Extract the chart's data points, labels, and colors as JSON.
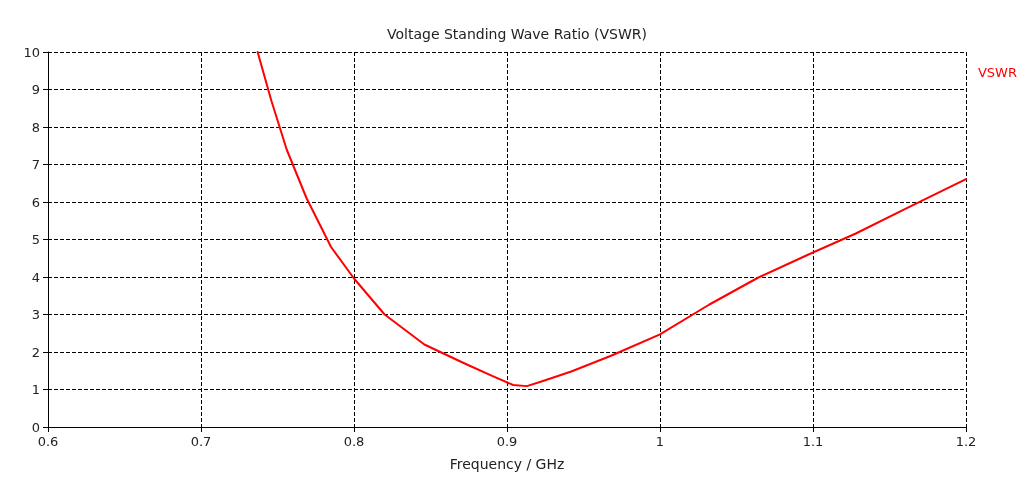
{
  "chart_data": {
    "type": "line",
    "title": "Voltage Standing Wave Ratio (VSWR)",
    "xlabel": "Frequency / GHz",
    "xlim": [
      0.6,
      1.2
    ],
    "xticks": [
      0.6,
      0.7,
      0.8,
      0.9,
      1,
      1.1,
      1.2
    ],
    "ylim": [
      0,
      10
    ],
    "yticks": [
      0,
      1,
      2,
      3,
      4,
      5,
      6,
      7,
      8,
      9,
      10
    ],
    "grid": true,
    "legend": "top right",
    "line_style": "solid",
    "marker": "none",
    "series": [
      {
        "name": "VSWR",
        "color": "#ff0000",
        "x": [
          0.737,
          0.746,
          0.756,
          0.769,
          0.785,
          0.8,
          0.82,
          0.846,
          0.872,
          0.891,
          0.904,
          0.913,
          0.923,
          0.942,
          0.968,
          1.0,
          1.032,
          1.064,
          1.096,
          1.128,
          1.16,
          1.2
        ],
        "values": [
          10,
          8.7,
          7.4,
          6.1,
          4.8,
          3.96,
          3.0,
          2.2,
          1.7,
          1.35,
          1.12,
          1.09,
          1.22,
          1.48,
          1.9,
          2.47,
          3.26,
          3.98,
          4.58,
          5.16,
          5.81,
          6.61
        ]
      }
    ]
  }
}
